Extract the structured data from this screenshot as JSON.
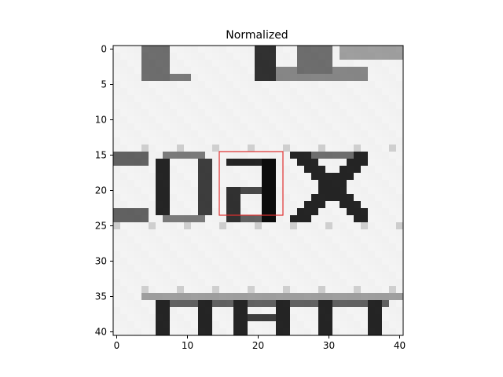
{
  "chart_data": {
    "type": "heatmap",
    "title": "Normalized",
    "colormap": "grayscale",
    "rows": 41,
    "cols": 41,
    "xlim": [
      0,
      40
    ],
    "ylim": [
      40,
      0
    ],
    "x_ticks": [
      0,
      10,
      20,
      30,
      40
    ],
    "y_ticks": [
      0,
      5,
      10,
      15,
      20,
      25,
      30,
      35,
      40
    ],
    "x_tick_labels": [
      "0",
      "10",
      "20",
      "30",
      "40"
    ],
    "y_tick_labels": [
      "0",
      "5",
      "10",
      "15",
      "20",
      "25",
      "30",
      "35",
      "40"
    ],
    "highlight_box": {
      "x0": 15,
      "y0": 15,
      "x1": 24,
      "y1": 24,
      "color": "#e03030"
    }
  }
}
